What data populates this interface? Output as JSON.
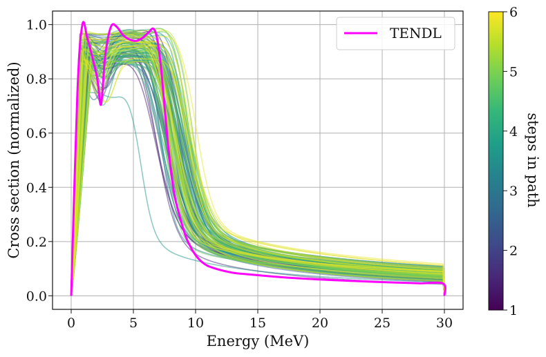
{
  "chart_data": {
    "type": "line",
    "xlabel": "Energy (MeV)",
    "ylabel": "Cross section (normalized)",
    "xlim": [
      -1.5,
      31.5
    ],
    "ylim": [
      -0.05,
      1.05
    ],
    "xticks": [
      0,
      5,
      10,
      15,
      20,
      25,
      30
    ],
    "xtick_labels": [
      "0",
      "5",
      "10",
      "15",
      "20",
      "25",
      "30"
    ],
    "yticks": [
      0.0,
      0.2,
      0.4,
      0.6,
      0.8,
      1.0
    ],
    "ytick_labels": [
      "0.0",
      "0.2",
      "0.4",
      "0.6",
      "0.8",
      "1.0"
    ],
    "grid": true,
    "legend": {
      "position": "top-right",
      "entries": [
        "TENDL"
      ]
    },
    "colorbar": {
      "label": "steps in path",
      "range": [
        1,
        6
      ],
      "ticks": [
        1,
        2,
        3,
        4,
        5,
        6
      ],
      "tick_labels": [
        "1",
        "2",
        "3",
        "4",
        "5",
        "6"
      ],
      "colormap": "viridis"
    },
    "colors": {
      "tendl": "#ff00ff",
      "grid": "#b0b0b0",
      "viridis_stops": [
        "#440154",
        "#482878",
        "#3e4a89",
        "#31688e",
        "#26828e",
        "#1f9e89",
        "#35b779",
        "#6ece58",
        "#b5de2b",
        "#fde725"
      ]
    },
    "tendl_series": {
      "name": "TENDL",
      "x": [
        0,
        0.5,
        0.9,
        1.3,
        1.7,
        2.1,
        2.4,
        2.7,
        3.0,
        3.3,
        3.7,
        4.2,
        4.7,
        5.2,
        5.7,
        6.2,
        6.6,
        6.9,
        7.2,
        7.5,
        7.8,
        8.1,
        8.4,
        8.8,
        9.2,
        9.6,
        10.0,
        10.5,
        11.0,
        12.0,
        13.0,
        14.0,
        16.0,
        18.0,
        20.0,
        22.0,
        24.0,
        26.0,
        28.0,
        29.9,
        30.0
      ],
      "y": [
        0.0,
        0.75,
        1.0,
        0.95,
        0.88,
        0.8,
        0.705,
        0.87,
        0.96,
        1.0,
        0.99,
        0.96,
        0.945,
        0.94,
        0.95,
        0.97,
        0.985,
        0.95,
        0.85,
        0.7,
        0.55,
        0.43,
        0.35,
        0.28,
        0.22,
        0.18,
        0.15,
        0.125,
        0.11,
        0.095,
        0.085,
        0.08,
        0.072,
        0.065,
        0.06,
        0.056,
        0.052,
        0.049,
        0.046,
        0.045,
        0.0
      ]
    },
    "ensemble": {
      "description": "~100 sampled cross-section curves colored by steps in path (1-6)",
      "count": 100,
      "steps_range": [
        1,
        6
      ],
      "rise_end_MeV": [
        0.6,
        1.7
      ],
      "plateau_height": [
        0.86,
        0.98
      ],
      "dip_depth": [
        0.0,
        0.25
      ],
      "falloff_center_MeV": [
        6.3,
        10.2
      ],
      "tail_at_10MeV": [
        0.12,
        0.3
      ],
      "tail_at_30MeV": [
        0.03,
        0.13
      ],
      "outlier_plateau": 0.71,
      "outlier_falloff_MeV": 5.6
    }
  }
}
